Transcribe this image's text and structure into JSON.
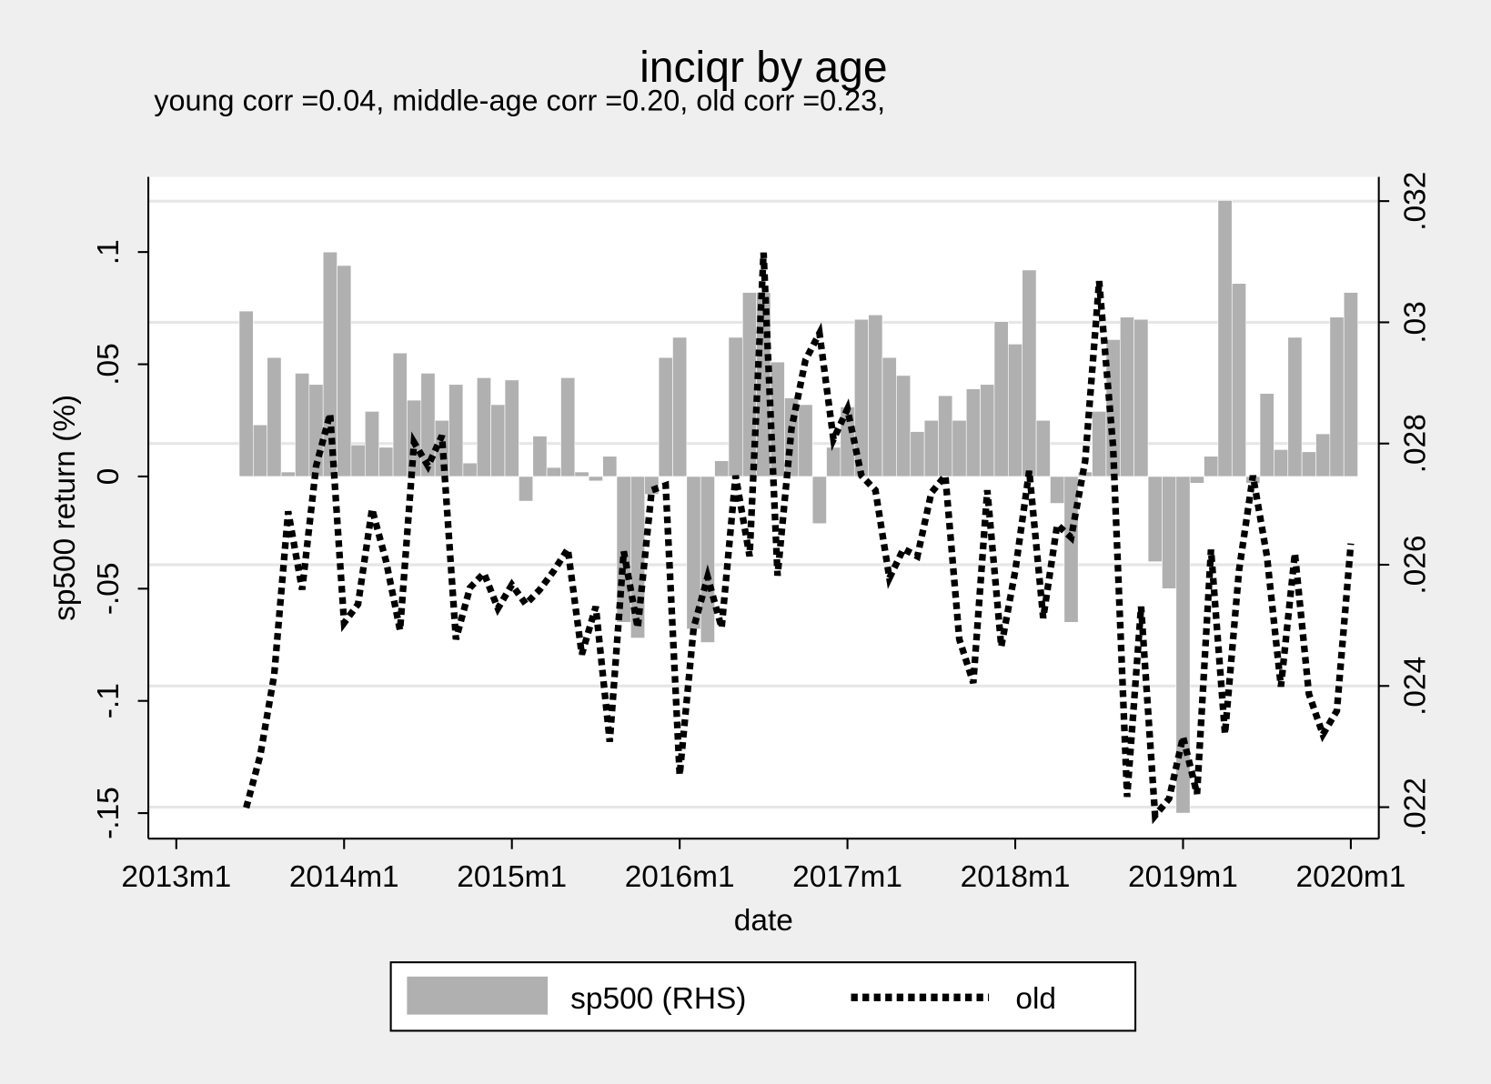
{
  "chart_data": {
    "type": "bar",
    "title": "inciqr by age",
    "subtitle": "young corr =0.04, middle-age corr =0.20, old corr =0.23,",
    "y_label": "sp500 return (%)",
    "x_label": "date",
    "x": [
      "2013m6",
      "2013m7",
      "2013m8",
      "2013m9",
      "2013m10",
      "2013m11",
      "2013m12",
      "2014m1",
      "2014m2",
      "2014m3",
      "2014m4",
      "2014m5",
      "2014m6",
      "2014m7",
      "2014m8",
      "2014m9",
      "2014m10",
      "2014m11",
      "2014m12",
      "2015m1",
      "2015m2",
      "2015m3",
      "2015m4",
      "2015m5",
      "2015m6",
      "2015m7",
      "2015m8",
      "2015m9",
      "2015m10",
      "2015m11",
      "2015m12",
      "2016m1",
      "2016m2",
      "2016m3",
      "2016m4",
      "2016m5",
      "2016m6",
      "2016m7",
      "2016m8",
      "2016m9",
      "2016m10",
      "2016m11",
      "2016m12",
      "2017m1",
      "2017m2",
      "2017m3",
      "2017m4",
      "2017m5",
      "2017m6",
      "2017m7",
      "2017m8",
      "2017m9",
      "2017m10",
      "2017m11",
      "2017m12",
      "2018m1",
      "2018m2",
      "2018m3",
      "2018m4",
      "2018m5",
      "2018m6",
      "2018m7",
      "2018m8",
      "2018m9",
      "2018m10",
      "2018m11",
      "2018m12",
      "2019m1",
      "2019m2",
      "2019m3",
      "2019m4",
      "2019m5",
      "2019m6",
      "2019m7",
      "2019m8",
      "2019m9",
      "2019m10",
      "2019m11",
      "2019m12",
      "2020m1"
    ],
    "series": [
      {
        "name": "sp500 (RHS)",
        "type": "bar",
        "color": "#b0b0b0",
        "values": [
          0.0737,
          0.023,
          0.053,
          0.002,
          0.046,
          0.041,
          0.1,
          0.094,
          0.014,
          0.029,
          0.013,
          0.055,
          0.034,
          0.046,
          0.025,
          0.041,
          0.006,
          0.044,
          0.032,
          0.043,
          -0.011,
          0.018,
          0.004,
          0.044,
          0.002,
          -0.002,
          0.009,
          -0.065,
          -0.072,
          -0.008,
          0.053,
          0.062,
          -0.068,
          -0.074,
          0.007,
          0.062,
          0.082,
          0.082,
          0.051,
          0.035,
          0.032,
          -0.021,
          0.013,
          0.031,
          0.07,
          0.072,
          0.053,
          0.045,
          0.02,
          0.025,
          0.036,
          0.025,
          0.039,
          0.041,
          0.069,
          0.059,
          0.092,
          0.025,
          -0.012,
          -0.065,
          0.002,
          0.029,
          0.061,
          0.071,
          0.07,
          -0.038,
          -0.05,
          -0.15,
          -0.003,
          0.009,
          0.123,
          0.086,
          -0.003,
          0.037,
          0.012,
          0.062,
          0.011,
          0.019,
          0.071,
          0.082
        ]
      },
      {
        "name": "old",
        "type": "line",
        "color": "#000000",
        "axis": "y2",
        "values": [
          0.02199,
          0.02285,
          0.02418,
          0.02688,
          0.02559,
          0.02763,
          0.02849,
          0.02504,
          0.02535,
          0.02692,
          0.02606,
          0.02492,
          0.02802,
          0.02763,
          0.02813,
          0.02477,
          0.02562,
          0.02586,
          0.02528,
          0.02567,
          0.02535,
          0.02559,
          0.0259,
          0.02626,
          0.02452,
          0.02531,
          0.02308,
          0.02622,
          0.02496,
          0.02723,
          0.02731,
          0.02253,
          0.02496,
          0.0258,
          0.02496,
          0.02747,
          0.02614,
          0.03115,
          0.02582,
          0.02825,
          0.02938,
          0.02982,
          0.02807,
          0.02857,
          0.02747,
          0.02723,
          0.02578,
          0.02626,
          0.02614,
          0.02719,
          0.02747,
          0.02477,
          0.02405,
          0.02723,
          0.02465,
          0.0259,
          0.02755,
          0.02512,
          0.02666,
          0.02645,
          0.02771,
          0.03068,
          0.02794,
          0.02217,
          0.02531,
          0.02186,
          0.02214,
          0.02316,
          0.02222,
          0.02625,
          0.02321,
          0.0259,
          0.02747,
          0.02614,
          0.02399,
          0.02619,
          0.02387,
          0.0232,
          0.02359,
          0.02635
        ]
      }
    ],
    "xlim": [
      "2012m11",
      "2020m3"
    ],
    "xticks": [
      "2013m1",
      "2014m1",
      "2015m1",
      "2016m1",
      "2017m1",
      "2018m1",
      "2019m1",
      "2020m1"
    ],
    "ylim": [
      -0.1614,
      0.1335
    ],
    "yticks": [
      {
        "value": -0.15,
        "label": "-.15"
      },
      {
        "value": -0.1,
        "label": "-.1"
      },
      {
        "value": -0.05,
        "label": "-.05"
      },
      0,
      {
        "value": 0.05,
        "label": ".05"
      },
      {
        "value": 0.1,
        "label": ".1"
      }
    ],
    "y2lim": [
      0.02148,
      0.0324
    ],
    "y2ticks": [
      {
        "value": 0.022,
        "label": ".022"
      },
      {
        "value": 0.024,
        "label": ".024"
      },
      {
        "value": 0.026,
        "label": ".026"
      },
      {
        "value": 0.028,
        "label": ".028"
      },
      {
        "value": 0.03,
        "label": ".03"
      },
      {
        "value": 0.032,
        "label": ".032"
      }
    ],
    "grid": true,
    "legend": "bottom"
  }
}
